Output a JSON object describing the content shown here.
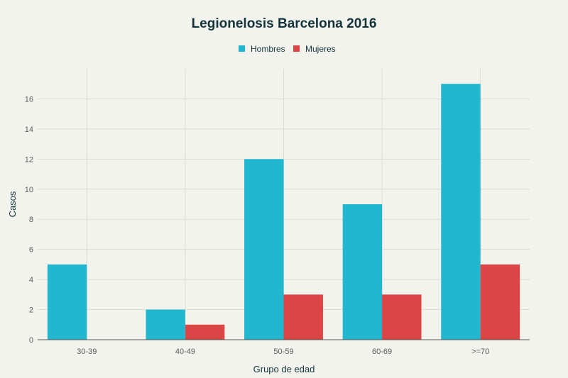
{
  "chart_data": {
    "type": "bar",
    "title": "Legionelosis Barcelona 2016",
    "xlabel": "Grupo de edad",
    "ylabel": "Casos",
    "categories": [
      "30-39",
      "40-49",
      "50-59",
      "60-69",
      ">=70"
    ],
    "series": [
      {
        "name": "Hombres",
        "values": [
          5,
          2,
          12,
          9,
          17
        ],
        "color": "#21b8cf"
      },
      {
        "name": "Mujeres",
        "values": [
          0,
          1,
          3,
          3,
          5
        ],
        "color": "#db4545"
      }
    ],
    "ylim": [
      0,
      18
    ],
    "yticks": [
      0,
      2,
      4,
      6,
      8,
      10,
      12,
      14,
      16
    ],
    "grid": true,
    "legend": "top-center"
  }
}
